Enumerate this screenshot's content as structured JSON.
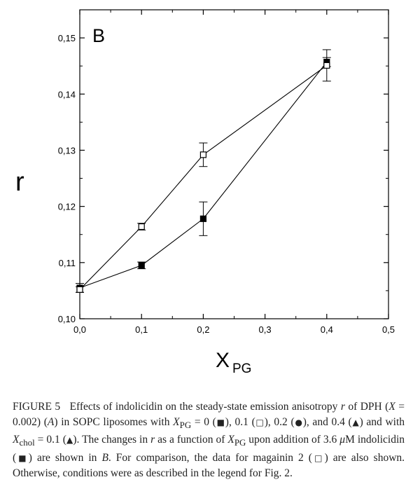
{
  "chart_data": {
    "type": "line",
    "panel_label": "B",
    "xlabel_main": "X",
    "xlabel_sub": "PG",
    "ylabel": "r",
    "xlim": [
      0.0,
      0.5
    ],
    "ylim": [
      0.1,
      0.155
    ],
    "x_ticks": [
      "0,0",
      "0,1",
      "0,2",
      "0,3",
      "0,4",
      "0,5"
    ],
    "y_ticks": [
      "0,10",
      "0,11",
      "0,12",
      "0,13",
      "0,14",
      "0,15"
    ],
    "x_tick_values": [
      0.0,
      0.1,
      0.2,
      0.3,
      0.4,
      0.5
    ],
    "y_tick_values": [
      0.1,
      0.11,
      0.12,
      0.13,
      0.14,
      0.15
    ],
    "grid": false,
    "series": [
      {
        "marker": "filled-square",
        "x": [
          0.0,
          0.1,
          0.2,
          0.4
        ],
        "y": [
          0.1055,
          0.1095,
          0.1178,
          0.1457
        ],
        "err": [
          0.0008,
          0.0006,
          0.003,
          0.0008
        ]
      },
      {
        "marker": "open-square",
        "x": [
          0.0,
          0.1,
          0.2,
          0.4
        ],
        "y": [
          0.1052,
          0.1164,
          0.1292,
          0.1451
        ],
        "err": [
          0.0005,
          0.0006,
          0.0021,
          0.0028
        ]
      }
    ]
  },
  "caption": {
    "label": "FIGURE 5",
    "seg01": "Effects of indolicidin on the steady-state emission anisotropy",
    "seg02": "r",
    "seg03": " of DPH (",
    "seg04": "X",
    "seg05": " = 0.002) (",
    "seg06": "A",
    "seg07": ") in SOPC liposomes with ",
    "seg08": "X",
    "seg09": "PG",
    "seg10": " = 0 (",
    "sym_filled_square": "■",
    "seg11": "), 0.1 (",
    "sym_open_square": "□",
    "seg12": "),",
    "seg13": "0.2 (",
    "sym_filled_circle": "●",
    "seg14": "), and 0.4 (",
    "sym_filled_triangle": "▲",
    "seg15": ") and with ",
    "seg16": "X",
    "seg17": "chol",
    "seg18": " = 0.1 (",
    "sym_filled_triangle_2": "▲",
    "seg19": "). The changes in ",
    "seg20": "r",
    "seg21": " as a function of ",
    "seg22": "X",
    "seg23": "PG",
    "seg24": " upon addition of 3.6 ",
    "seg25": "μ",
    "seg26": "M indolicidin (",
    "sym_filled_square_2": "■",
    "seg27": ") are shown in ",
    "seg28": "B",
    "seg29": ". For comparison, the data for magainin 2 (",
    "sym_open_square_2": "□",
    "seg30": ") are also shown. Otherwise, conditions were as described in the legend for Fig. 2."
  }
}
